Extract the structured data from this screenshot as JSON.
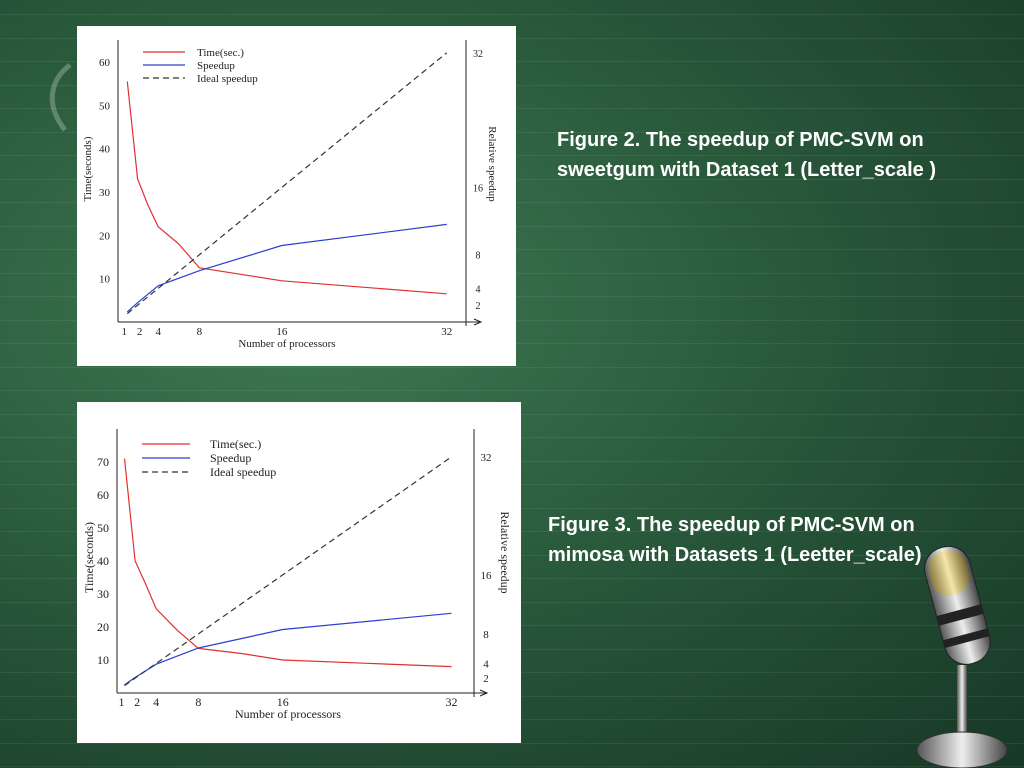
{
  "captions": {
    "fig2": "Figure 2. The speedup of PMC-SVM on sweetgum with Dataset 1 (Letter_scale )",
    "fig3": "Figure 3. The speedup of PMC-SVM on mimosa with Datasets 1 (Leetter_scale)"
  },
  "chart_data": [
    {
      "type": "line",
      "xlabel": "Number of processors",
      "ylabel": "Time(seconds)",
      "y2label": "Relative speedup",
      "x_ticks": [
        1,
        2,
        4,
        8,
        16,
        32
      ],
      "y_ticks": [
        10,
        20,
        30,
        40,
        50,
        60
      ],
      "y2_ticks": [
        2,
        4,
        8,
        16,
        32
      ],
      "ylim": [
        0,
        66
      ],
      "y2lim": [
        0,
        34
      ],
      "xlim": [
        0,
        33
      ],
      "legend": [
        "Time(sec.)",
        "Speedup",
        "Ideal speedup"
      ],
      "colors": {
        "time": "#e03030",
        "speedup": "#2a3fd0",
        "ideal": "#333333"
      },
      "series": [
        {
          "name": "Time(sec.)",
          "axis": "left",
          "x": [
            1,
            2,
            3,
            4,
            6,
            8,
            12,
            16,
            24,
            32
          ],
          "values": [
            55.5,
            33,
            27,
            22,
            18,
            12.5,
            11,
            9.5,
            8,
            6.5
          ]
        },
        {
          "name": "Speedup",
          "axis": "right",
          "x": [
            1,
            2,
            4,
            8,
            16,
            32
          ],
          "values": [
            1.2,
            2.3,
            4.3,
            6.1,
            9.1,
            11.6
          ]
        },
        {
          "name": "Ideal speedup",
          "axis": "right",
          "x": [
            1,
            32
          ],
          "values": [
            1,
            32
          ]
        }
      ]
    },
    {
      "type": "line",
      "xlabel": "Number of processors",
      "ylabel": "Time(seconds)",
      "y2label": "Relative speedup",
      "x_ticks": [
        1,
        2,
        4,
        8,
        16,
        32
      ],
      "y_ticks": [
        10,
        20,
        30,
        40,
        50,
        60,
        70
      ],
      "y2_ticks": [
        2,
        4,
        8,
        16,
        32
      ],
      "ylim": [
        0,
        76
      ],
      "y2lim": [
        0,
        34
      ],
      "xlim": [
        0,
        33
      ],
      "legend": [
        "Time(sec.)",
        "Speedup",
        "Ideal speedup"
      ],
      "colors": {
        "time": "#e03030",
        "speedup": "#2a3fd0",
        "ideal": "#333333"
      },
      "series": [
        {
          "name": "Time(sec.)",
          "axis": "left",
          "x": [
            1,
            2,
            3,
            4,
            6,
            8,
            12,
            16,
            24,
            32
          ],
          "values": [
            71,
            40,
            33,
            25.5,
            19,
            13.5,
            12,
            10,
            9,
            8
          ]
        },
        {
          "name": "Speedup",
          "axis": "right",
          "x": [
            1,
            2,
            4,
            8,
            16,
            32
          ],
          "values": [
            1.1,
            2.1,
            3.9,
            6.1,
            8.6,
            10.8
          ]
        },
        {
          "name": "Ideal speedup",
          "axis": "right",
          "x": [
            1,
            32
          ],
          "values": [
            1,
            32
          ]
        }
      ]
    }
  ]
}
